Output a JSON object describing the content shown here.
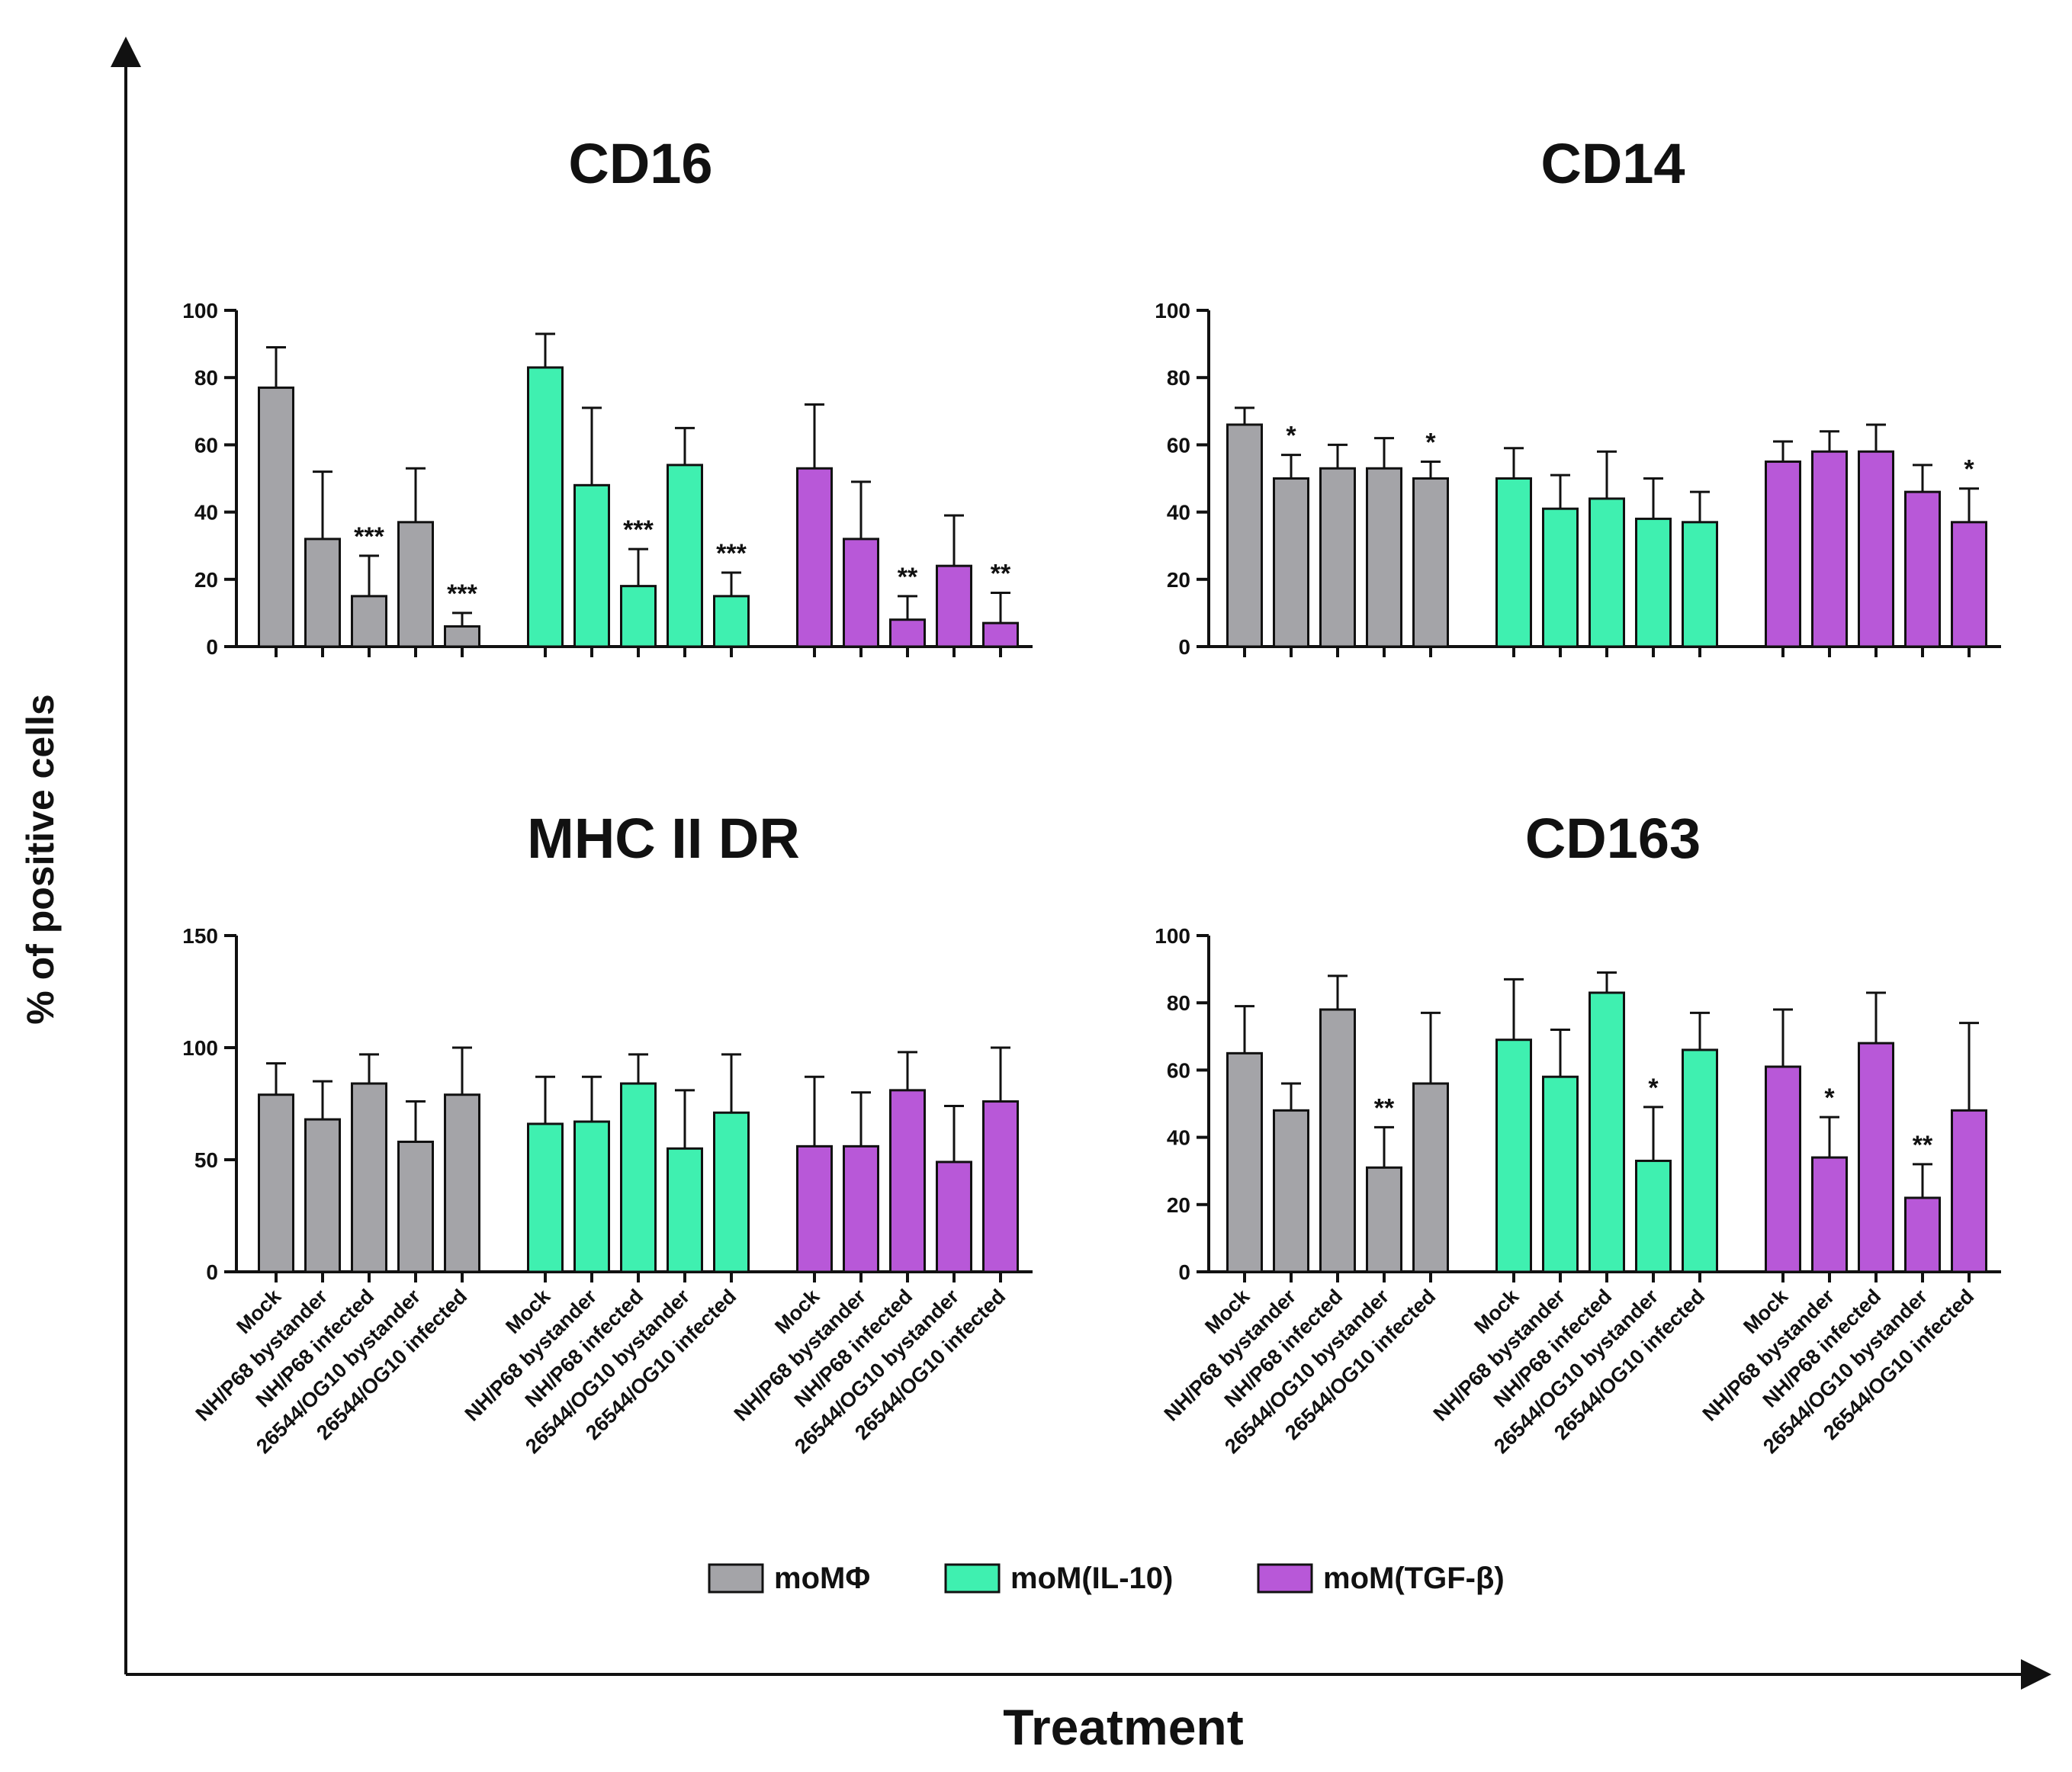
{
  "figure": {
    "y_axis_label": "% of positive cells",
    "x_axis_label": "Treatment"
  },
  "legend": [
    {
      "label": "moMΦ",
      "color": "#a4a4a8"
    },
    {
      "label": "moM(IL-10)",
      "color": "#3ff0b0"
    },
    {
      "label": "moM(TGF-β)",
      "color": "#b858d8"
    }
  ],
  "chart_data": [
    {
      "type": "bar",
      "title": "CD16",
      "ylim": [
        0,
        100
      ],
      "yticks": [
        0,
        20,
        40,
        60,
        80,
        100
      ],
      "categories": [
        "Mock",
        "NH/P68 bystander",
        "NH/P68 infected",
        "26544/OG10 bystander",
        "26544/OG10 infected"
      ],
      "show_category_labels": false,
      "series": [
        {
          "name": "moMΦ",
          "values": [
            77,
            32,
            15,
            37,
            6
          ],
          "errors": [
            12,
            20,
            12,
            16,
            4
          ],
          "significance": [
            "",
            "",
            "***",
            "",
            "***"
          ]
        },
        {
          "name": "moM(IL-10)",
          "values": [
            83,
            48,
            18,
            54,
            15
          ],
          "errors": [
            10,
            23,
            11,
            11,
            7
          ],
          "significance": [
            "",
            "",
            "***",
            "",
            "***"
          ]
        },
        {
          "name": "moM(TGF-β)",
          "values": [
            53,
            32,
            8,
            24,
            7
          ],
          "errors": [
            19,
            17,
            7,
            15,
            9
          ],
          "significance": [
            "",
            "",
            "**",
            "",
            "**"
          ]
        }
      ]
    },
    {
      "type": "bar",
      "title": "CD14",
      "ylim": [
        0,
        100
      ],
      "yticks": [
        0,
        20,
        40,
        60,
        80,
        100
      ],
      "categories": [
        "Mock",
        "NH/P68 bystander",
        "NH/P68 infected",
        "26544/OG10 bystander",
        "26544/OG10 infected"
      ],
      "show_category_labels": false,
      "series": [
        {
          "name": "moMΦ",
          "values": [
            66,
            50,
            53,
            53,
            50
          ],
          "errors": [
            5,
            7,
            7,
            9,
            5
          ],
          "significance": [
            "",
            "*",
            "",
            "",
            "*"
          ]
        },
        {
          "name": "moM(IL-10)",
          "values": [
            50,
            41,
            44,
            38,
            37
          ],
          "errors": [
            9,
            10,
            14,
            12,
            9
          ],
          "significance": [
            "",
            "",
            "",
            "",
            ""
          ]
        },
        {
          "name": "moM(TGF-β)",
          "values": [
            55,
            58,
            58,
            46,
            37
          ],
          "errors": [
            6,
            6,
            8,
            8,
            10
          ],
          "significance": [
            "",
            "",
            "",
            "",
            "*"
          ]
        }
      ]
    },
    {
      "type": "bar",
      "title": "MHC II DR",
      "ylim": [
        0,
        150
      ],
      "yticks": [
        0,
        50,
        100,
        150
      ],
      "categories": [
        "Mock",
        "NH/P68 bystander",
        "NH/P68 infected",
        "26544/OG10 bystander",
        "26544/OG10 infected"
      ],
      "show_category_labels": true,
      "series": [
        {
          "name": "moMΦ",
          "values": [
            79,
            68,
            84,
            58,
            79
          ],
          "errors": [
            14,
            17,
            13,
            18,
            21
          ],
          "significance": [
            "",
            "",
            "",
            "",
            ""
          ]
        },
        {
          "name": "moM(IL-10)",
          "values": [
            66,
            67,
            84,
            55,
            71
          ],
          "errors": [
            21,
            20,
            13,
            26,
            26
          ],
          "significance": [
            "",
            "",
            "",
            "",
            ""
          ]
        },
        {
          "name": "moM(TGF-β)",
          "values": [
            56,
            56,
            81,
            49,
            76
          ],
          "errors": [
            31,
            24,
            17,
            25,
            24
          ],
          "significance": [
            "",
            "",
            "",
            "",
            ""
          ]
        }
      ]
    },
    {
      "type": "bar",
      "title": "CD163",
      "ylim": [
        0,
        100
      ],
      "yticks": [
        0,
        20,
        40,
        60,
        80,
        100
      ],
      "categories": [
        "Mock",
        "NH/P68 bystander",
        "NH/P68 infected",
        "26544/OG10 bystander",
        "26544/OG10 infected"
      ],
      "show_category_labels": true,
      "series": [
        {
          "name": "moMΦ",
          "values": [
            65,
            48,
            78,
            31,
            56
          ],
          "errors": [
            14,
            8,
            10,
            12,
            21
          ],
          "significance": [
            "",
            "",
            "",
            "**",
            ""
          ]
        },
        {
          "name": "moM(IL-10)",
          "values": [
            69,
            58,
            83,
            33,
            66
          ],
          "errors": [
            18,
            14,
            6,
            16,
            11
          ],
          "significance": [
            "",
            "",
            "",
            "*",
            ""
          ]
        },
        {
          "name": "moM(TGF-β)",
          "values": [
            61,
            34,
            68,
            22,
            48
          ],
          "errors": [
            17,
            12,
            15,
            10,
            26
          ],
          "significance": [
            "",
            "*",
            "",
            "**",
            ""
          ]
        }
      ]
    }
  ]
}
